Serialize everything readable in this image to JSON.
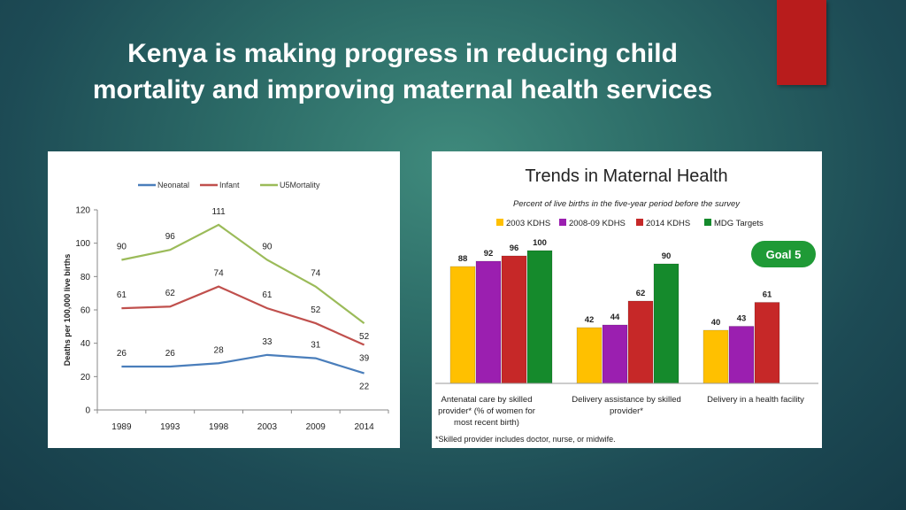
{
  "slide": {
    "title_line1": "Kenya is making progress in reducing child",
    "title_line2": "mortality and improving maternal health services",
    "accent_color": "#b81c1c"
  },
  "chart_data": [
    {
      "type": "line",
      "x": [
        1989,
        1993,
        1998,
        2003,
        2009,
        2014
      ],
      "x_labels": [
        "1989",
        "1993",
        "1998",
        "2003",
        "2009",
        "2014"
      ],
      "ylabel": "Deaths per 100,000 live births",
      "ylim": [
        0,
        120
      ],
      "yticks": [
        0,
        20,
        40,
        60,
        80,
        100,
        120
      ],
      "legend_position": "top",
      "grid": false,
      "series": [
        {
          "name": "Neonatal",
          "color": "#4a7ebb",
          "values": [
            26,
            26,
            28,
            33,
            31,
            22
          ],
          "labels": [
            "26",
            "26",
            "28",
            "33",
            "31",
            "22"
          ]
        },
        {
          "name": "Infant",
          "color": "#c0504d",
          "values": [
            61,
            62,
            74,
            61,
            52,
            39
          ],
          "labels": [
            "61",
            "62",
            "74",
            "61",
            "52",
            "39"
          ]
        },
        {
          "name": "U5Mortality",
          "color": "#9bbb59",
          "values": [
            90,
            96,
            111,
            90,
            74,
            52
          ],
          "labels": [
            "90",
            "96",
            "111",
            "90",
            "74",
            "52"
          ]
        }
      ]
    },
    {
      "type": "bar",
      "title": "Trends in Maternal Health",
      "subtitle": "Percent of live births in the five-year period before the survey",
      "categories": [
        [
          "Antenatal care by skilled",
          "provider* (% of women for",
          "most recent birth)"
        ],
        [
          "Delivery assistance by skilled",
          "provider*"
        ],
        [
          "Delivery in a health facility"
        ]
      ],
      "ylim": [
        0,
        100
      ],
      "legend_position": "top",
      "grid": false,
      "series": [
        {
          "name": "2003 KDHS",
          "color": "#ffc000",
          "values": [
            88,
            42,
            40
          ]
        },
        {
          "name": "2008-09 KDHS",
          "color": "#9b1fb0",
          "values": [
            92,
            44,
            43
          ]
        },
        {
          "name": "2014 KDHS",
          "color": "#c62828",
          "values": [
            96,
            62,
            61
          ]
        },
        {
          "name": "MDG Targets",
          "color": "#158a2c",
          "values": [
            100,
            90,
            null
          ]
        }
      ],
      "badge": {
        "label": "Goal 5",
        "color": "#1f9a36"
      },
      "footnote": "*Skilled provider includes doctor, nurse, or midwife."
    }
  ]
}
